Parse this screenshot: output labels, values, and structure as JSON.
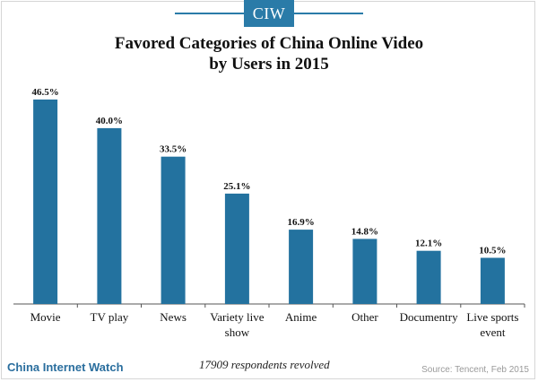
{
  "brand": {
    "logo_text": "CIW",
    "footer_name": "China Internet Watch"
  },
  "colors": {
    "bar": "#23729f",
    "brand": "#2a7ba8",
    "axis": "#555555"
  },
  "note": "17909 respondents revolved",
  "source": "Source: Tencent, Feb 2015",
  "chart_data": {
    "type": "bar",
    "title_lines": [
      "Favored Categories of China Online Video",
      "by Users in 2015"
    ],
    "categories": [
      [
        "Movie"
      ],
      [
        "TV play"
      ],
      [
        "News"
      ],
      [
        "Variety live",
        "show"
      ],
      [
        "Anime"
      ],
      [
        "Other"
      ],
      [
        "Documentry"
      ],
      [
        "Live sports",
        "event"
      ]
    ],
    "values": [
      46.5,
      40.0,
      33.5,
      25.1,
      16.9,
      14.8,
      12.1,
      10.5
    ],
    "value_labels": [
      "46.5%",
      "40.0%",
      "33.5%",
      "25.1%",
      "16.9%",
      "14.8%",
      "12.1%",
      "10.5%"
    ],
    "unit": "%",
    "ylim": [
      0,
      46.5
    ],
    "grid": false,
    "legend": "none"
  }
}
